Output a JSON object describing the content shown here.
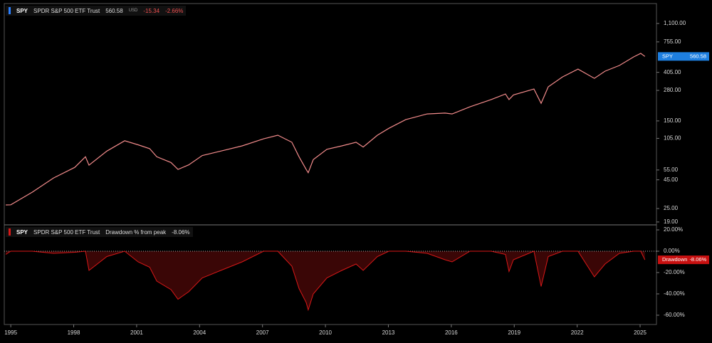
{
  "chart_data": [
    {
      "type": "line",
      "symbol": "SPY",
      "name": "SPDR S&P 500 ETF Trust",
      "last": 560.58,
      "currency": "USD",
      "change": -15.34,
      "change_pct": "-2.66%",
      "color": "#f28b8b",
      "log_scale": true,
      "x": [
        1994.76,
        1995.0,
        1996.02,
        1997.04,
        1998.05,
        1998.56,
        1998.73,
        1999.58,
        2000.43,
        2001.07,
        2001.62,
        2001.96,
        2002.64,
        2002.97,
        2003.48,
        2004.13,
        2005.01,
        2006.03,
        2007.05,
        2007.73,
        2008.4,
        2008.74,
        2009.08,
        2009.18,
        2009.42,
        2010.07,
        2010.78,
        2011.46,
        2011.8,
        2012.48,
        2013.02,
        2013.83,
        2014.85,
        2015.7,
        2016.04,
        2016.89,
        2017.9,
        2018.58,
        2018.75,
        2018.96,
        2019.94,
        2020.28,
        2020.62,
        2021.3,
        2022.04,
        2022.82,
        2023.33,
        2024.01,
        2024.69,
        2025.03,
        2025.23
      ],
      "values": [
        26.9,
        27,
        34.9,
        46.7,
        58,
        72,
        60.7,
        81,
        100,
        92,
        85,
        72,
        64,
        55.6,
        61,
        74,
        81,
        90,
        104,
        112,
        97,
        72,
        55.6,
        52,
        68,
        84,
        90,
        97,
        88,
        112,
        129,
        154,
        173,
        176,
        173,
        200,
        232,
        260,
        232,
        255,
        288,
        215,
        301,
        369,
        433,
        358,
        415,
        466,
        555,
        597,
        560.58
      ],
      "xlim": [
        1994.69,
        2025.78
      ],
      "ylim": [
        17.9,
        1653
      ],
      "yticks": [
        {
          "value": 1100,
          "label": "1,100.00"
        },
        {
          "value": 755,
          "label": "755.00"
        },
        {
          "value": 405,
          "label": "405.00"
        },
        {
          "value": 280,
          "label": "280.00"
        },
        {
          "value": 150,
          "label": "150.00"
        },
        {
          "value": 105,
          "label": "105.00"
        },
        {
          "value": 55,
          "label": "55.00"
        },
        {
          "value": 45,
          "label": "45.00"
        },
        {
          "value": 25,
          "label": "25.00"
        },
        {
          "value": 19,
          "label": "19.00"
        }
      ]
    },
    {
      "type": "area",
      "symbol": "SPY",
      "name": "SPDR S&P 500 ETF Trust",
      "indicator": "Drawdown % from peak",
      "last_label": "-8.06%",
      "badge": "Drawdown",
      "color": "#d81818",
      "fill": "#3a0606",
      "x": [
        1994.76,
        1995.0,
        1996.02,
        1997.04,
        1998.05,
        1998.56,
        1998.73,
        1999.58,
        2000.43,
        2001.07,
        2001.62,
        2001.96,
        2002.64,
        2002.97,
        2003.48,
        2004.13,
        2005.01,
        2006.03,
        2007.05,
        2007.73,
        2008.4,
        2008.74,
        2009.08,
        2009.18,
        2009.42,
        2010.07,
        2010.78,
        2011.46,
        2011.8,
        2012.48,
        2013.02,
        2013.83,
        2014.85,
        2015.7,
        2016.04,
        2016.89,
        2017.9,
        2018.58,
        2018.75,
        2018.96,
        2019.94,
        2020.28,
        2020.62,
        2021.3,
        2022.04,
        2022.82,
        2023.33,
        2024.01,
        2024.69,
        2025.03,
        2025.23
      ],
      "values": [
        -3,
        0,
        0,
        -2,
        -1,
        0,
        -18,
        -5,
        0,
        -10,
        -15,
        -28,
        -36,
        -45,
        -38,
        -25,
        -18,
        -10,
        0,
        0,
        -14,
        -35,
        -48,
        -55,
        -40,
        -25,
        -18,
        -12,
        -18,
        -5,
        0,
        0,
        -2,
        -8,
        -10,
        0,
        0,
        -3,
        -19,
        -8,
        0,
        -33,
        -5,
        0,
        0,
        -24,
        -12,
        -2,
        0,
        0,
        -8.06
      ],
      "xlim": [
        1994.69,
        2025.78
      ],
      "ylim": [
        -68.7,
        24.7
      ],
      "yticks": [
        {
          "value": 20,
          "label": "20.00%"
        },
        {
          "value": 0,
          "label": "0.00%"
        },
        {
          "value": -20,
          "label": "-20.00%"
        },
        {
          "value": -40,
          "label": "-40.00%"
        },
        {
          "value": -60,
          "label": "-60.00%"
        }
      ],
      "xticks": [
        1995,
        1998,
        2001,
        2004,
        2007,
        2010,
        2013,
        2016,
        2019,
        2022,
        2025
      ]
    }
  ]
}
